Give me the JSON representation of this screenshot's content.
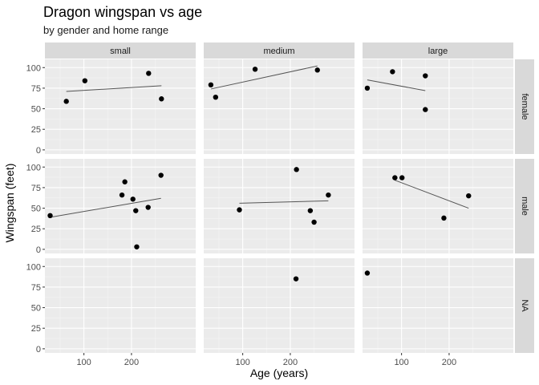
{
  "chart_data": {
    "type": "scatter",
    "title": "Dragon wingspan vs age",
    "subtitle": "by gender and home range",
    "xlabel": "Age (years)",
    "ylabel": "Wingspan (feet)",
    "facet_cols": [
      "small",
      "medium",
      "large"
    ],
    "facet_rows": [
      "female",
      "male",
      "NA"
    ],
    "x_ticks": [
      100,
      200
    ],
    "y_ticks": [
      0,
      25,
      50,
      75,
      100
    ],
    "xlim": [
      18,
      335
    ],
    "ylim": [
      -5,
      110
    ],
    "grid": true,
    "panels": [
      {
        "col": "small",
        "row": "female",
        "points": [
          [
            63,
            59
          ],
          [
            102,
            84
          ],
          [
            236,
            93
          ],
          [
            263,
            62
          ]
        ],
        "trend": [
          [
            63,
            71
          ],
          [
            263,
            78
          ]
        ]
      },
      {
        "col": "medium",
        "row": "female",
        "points": [
          [
            33,
            79
          ],
          [
            43,
            64
          ],
          [
            126,
            98
          ],
          [
            257,
            97
          ]
        ],
        "trend": [
          [
            33,
            74
          ],
          [
            257,
            102
          ]
        ]
      },
      {
        "col": "large",
        "row": "female",
        "points": [
          [
            28,
            75
          ],
          [
            81,
            95
          ],
          [
            150,
            90
          ],
          [
            150,
            49
          ]
        ],
        "trend": [
          [
            28,
            85
          ],
          [
            150,
            72
          ]
        ]
      },
      {
        "col": "small",
        "row": "male",
        "points": [
          [
            29,
            41
          ],
          [
            180,
            66
          ],
          [
            186,
            82
          ],
          [
            203,
            61
          ],
          [
            209,
            47
          ],
          [
            211,
            3
          ],
          [
            235,
            51
          ],
          [
            262,
            90
          ]
        ],
        "trend": [
          [
            29,
            39
          ],
          [
            262,
            62
          ]
        ]
      },
      {
        "col": "medium",
        "row": "male",
        "points": [
          [
            93,
            48
          ],
          [
            213,
            97
          ],
          [
            242,
            47
          ],
          [
            250,
            33
          ],
          [
            280,
            66
          ]
        ],
        "trend": [
          [
            93,
            56
          ],
          [
            280,
            59
          ]
        ]
      },
      {
        "col": "large",
        "row": "male",
        "points": [
          [
            86,
            87
          ],
          [
            101,
            87
          ],
          [
            189,
            38
          ],
          [
            241,
            65
          ]
        ],
        "trend": [
          [
            86,
            84
          ],
          [
            241,
            50
          ]
        ]
      },
      {
        "col": "small",
        "row": "NA",
        "points": [],
        "trend": null
      },
      {
        "col": "medium",
        "row": "NA",
        "points": [
          [
            212,
            85
          ]
        ],
        "trend": null
      },
      {
        "col": "large",
        "row": "NA",
        "points": [
          [
            28,
            92
          ]
        ],
        "trend": null
      }
    ]
  }
}
